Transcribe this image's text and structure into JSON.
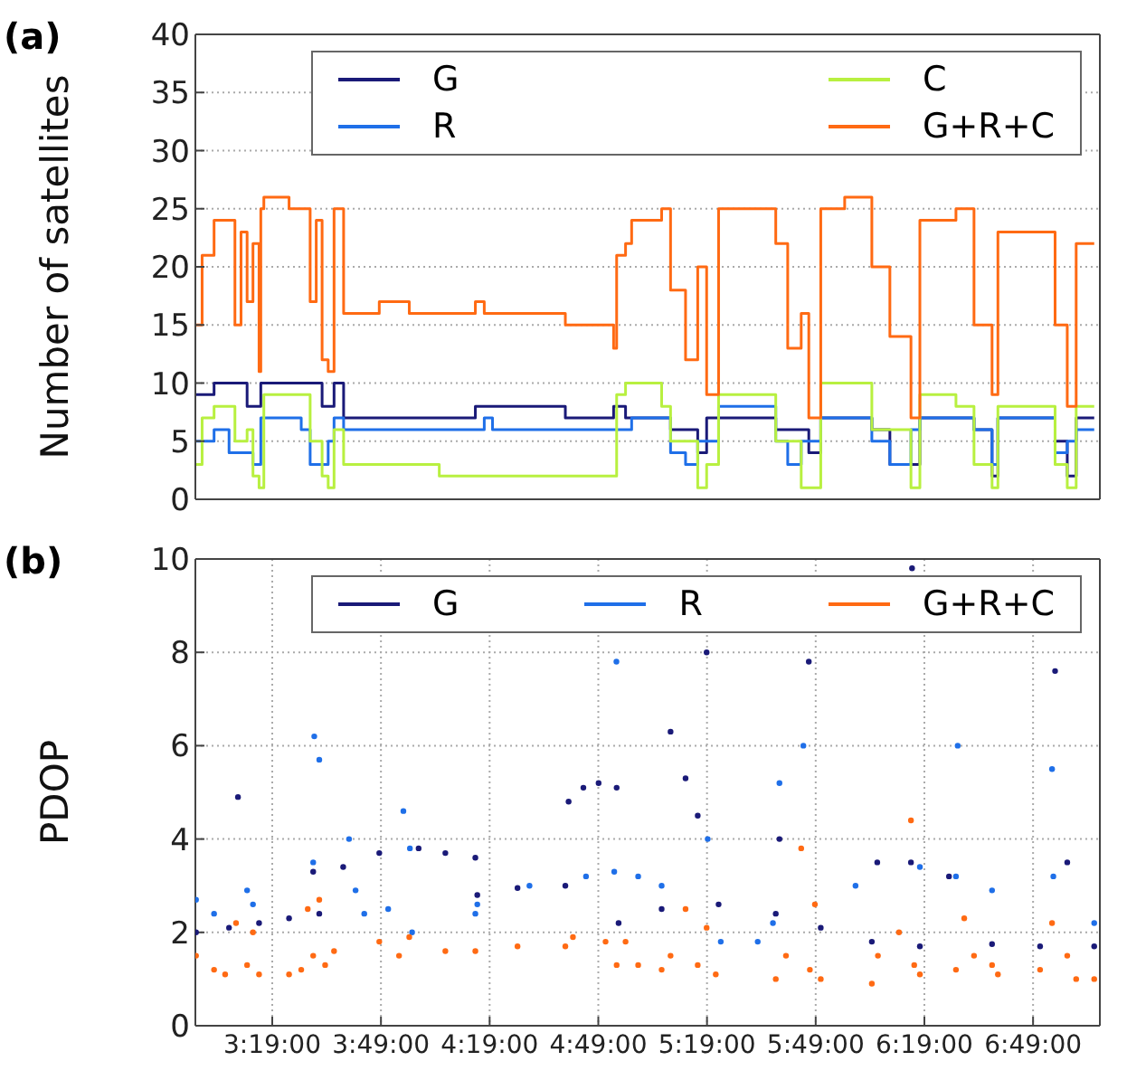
{
  "chart_data": [
    {
      "type": "step",
      "title": "(a)",
      "ylabel": "Number of satellites",
      "xlim": [
        2.963,
        7.124
      ],
      "xticks": [
        {
          "value": 3.3167,
          "label": null
        },
        {
          "value": 3.8167,
          "label": null
        },
        {
          "value": 4.3167,
          "label": null
        },
        {
          "value": 4.8167,
          "label": null
        },
        {
          "value": 5.3167,
          "label": null
        },
        {
          "value": 5.8167,
          "label": null
        },
        {
          "value": 6.3167,
          "label": null
        },
        {
          "value": 6.8167,
          "label": null
        }
      ],
      "ylim": [
        0,
        40
      ],
      "yticks": [
        0,
        5,
        10,
        15,
        20,
        25,
        30,
        35,
        40
      ],
      "tick_labels": "y",
      "grid": true,
      "legend": "top",
      "marker": "none",
      "series": [
        {
          "name": "G",
          "color": "#1a1a78",
          "x": [
            2.966,
            3.049,
            3.201,
            3.264,
            3.546,
            3.601,
            3.645,
            4.251,
            4.665,
            4.887,
            4.942,
            5.149,
            5.274,
            5.315,
            5.633,
            5.785,
            5.84,
            6.075,
            6.158,
            6.296,
            6.545,
            6.628,
            6.655,
            6.918,
            6.974,
            7.015,
            7.098
          ],
          "values": [
            9,
            10,
            8,
            10,
            8,
            10,
            7,
            8,
            7,
            8,
            7,
            6,
            4,
            7,
            6,
            4,
            7,
            6,
            3,
            7,
            6,
            2,
            7,
            5,
            2,
            7,
            7
          ]
        },
        {
          "name": "R",
          "color": "#1f6fe8",
          "x": [
            2.966,
            3.049,
            3.118,
            3.228,
            3.264,
            3.45,
            3.491,
            3.574,
            3.601,
            3.645,
            4.292,
            4.33,
            4.887,
            4.97,
            5.149,
            5.218,
            5.274,
            5.37,
            5.633,
            5.688,
            5.75,
            5.84,
            6.075,
            6.158,
            6.255,
            6.296,
            6.545,
            6.628,
            6.655,
            6.918,
            6.974,
            7.015,
            7.098
          ],
          "values": [
            5,
            6,
            4,
            3,
            7,
            6,
            3,
            5,
            7,
            6,
            7,
            6,
            6,
            7,
            4,
            3,
            5,
            8,
            5,
            3,
            5,
            7,
            5,
            3,
            6,
            7,
            6,
            3,
            7,
            4,
            5,
            6,
            6
          ]
        },
        {
          "name": "C",
          "color": "#b8f040",
          "x": [
            2.966,
            2.994,
            3.049,
            3.145,
            3.201,
            3.228,
            3.256,
            3.278,
            3.45,
            3.491,
            3.546,
            3.574,
            3.601,
            3.645,
            4.002,
            4.085,
            4.887,
            4.901,
            4.942,
            5.108,
            5.149,
            5.274,
            5.315,
            5.37,
            5.633,
            5.75,
            5.785,
            5.84,
            6.075,
            6.255,
            6.296,
            6.462,
            6.545,
            6.628,
            6.655,
            6.849,
            6.918,
            6.974,
            7.015,
            7.098
          ],
          "values": [
            3,
            7,
            8,
            5,
            6,
            2,
            1,
            9,
            9,
            5,
            2,
            1,
            6,
            3,
            3,
            2,
            2,
            9,
            10,
            8,
            5,
            1,
            3,
            9,
            5,
            1,
            1,
            10,
            6,
            1,
            9,
            8,
            3,
            1,
            8,
            8,
            3,
            1,
            8,
            8
          ]
        },
        {
          "name": "G+R+C",
          "color": "#ff6a13",
          "x": [
            2.966,
            2.994,
            3.049,
            3.118,
            3.145,
            3.173,
            3.201,
            3.228,
            3.256,
            3.264,
            3.278,
            3.394,
            3.45,
            3.491,
            3.519,
            3.546,
            3.574,
            3.601,
            3.637,
            3.645,
            3.809,
            3.947,
            4.002,
            4.085,
            4.251,
            4.292,
            4.665,
            4.776,
            4.887,
            4.901,
            4.942,
            4.97,
            5.108,
            5.149,
            5.218,
            5.274,
            5.315,
            5.37,
            5.633,
            5.688,
            5.75,
            5.785,
            5.84,
            5.95,
            6.075,
            6.158,
            6.255,
            6.296,
            6.462,
            6.545,
            6.628,
            6.655,
            6.849,
            6.918,
            6.974,
            7.015,
            7.098
          ],
          "values": [
            15,
            21,
            24,
            24,
            15,
            23,
            17,
            22,
            11,
            25,
            26,
            25,
            25,
            17,
            24,
            12,
            11,
            25,
            25,
            16,
            17,
            16,
            16,
            16,
            17,
            16,
            15,
            15,
            13,
            21,
            22,
            24,
            25,
            18,
            12,
            20,
            9,
            25,
            22,
            13,
            16,
            7,
            25,
            26,
            20,
            14,
            7,
            24,
            25,
            15,
            9,
            23,
            23,
            15,
            8,
            22,
            22
          ]
        }
      ]
    },
    {
      "type": "scatter",
      "title": "(b)",
      "ylabel": "PDOP",
      "xlim": [
        2.963,
        7.124
      ],
      "xticks": [
        {
          "value": 3.3167,
          "label": "3:19:00"
        },
        {
          "value": 3.8167,
          "label": "3:49:00"
        },
        {
          "value": 4.3167,
          "label": "4:19:00"
        },
        {
          "value": 4.8167,
          "label": "4:49:00"
        },
        {
          "value": 5.3167,
          "label": "5:19:00"
        },
        {
          "value": 5.8167,
          "label": "5:49:00"
        },
        {
          "value": 6.3167,
          "label": "6:19:00"
        },
        {
          "value": 6.8167,
          "label": "6:49:00"
        }
      ],
      "ylim": [
        0,
        10
      ],
      "yticks": [
        0,
        2,
        4,
        6,
        8,
        10
      ],
      "grid": true,
      "legend": "top",
      "marker": "circle",
      "series": [
        {
          "name": "G",
          "color": "#1a1a78",
          "x": [
            2.966,
            3.118,
            3.159,
            3.256,
            3.394,
            3.505,
            3.533,
            3.643,
            3.809,
            3.99,
            4.113,
            4.251,
            4.26,
            4.445,
            4.665,
            4.68,
            4.748,
            4.818,
            4.901,
            4.91,
            5.108,
            5.149,
            5.218,
            5.274,
            5.315,
            5.37,
            5.633,
            5.65,
            5.785,
            5.84,
            6.075,
            6.1,
            6.255,
            6.26,
            6.296,
            6.43,
            6.628,
            6.849,
            6.918,
            6.974,
            7.098
          ],
          "values": [
            2.0,
            2.1,
            4.9,
            2.2,
            2.3,
            3.3,
            2.4,
            3.4,
            3.7,
            3.8,
            3.7,
            3.6,
            2.8,
            2.95,
            3.0,
            4.8,
            5.1,
            5.2,
            5.1,
            2.2,
            2.5,
            6.3,
            5.3,
            4.5,
            8.0,
            2.6,
            2.4,
            4.0,
            7.8,
            2.1,
            1.8,
            3.5,
            3.5,
            9.8,
            1.7,
            3.2,
            1.75,
            1.7,
            7.6,
            3.5,
            1.7
          ]
        },
        {
          "name": "R",
          "color": "#1f6fe8",
          "x": [
            2.966,
            3.049,
            3.201,
            3.228,
            3.505,
            3.51,
            3.533,
            3.67,
            3.7,
            3.74,
            3.85,
            3.92,
            3.95,
            3.96,
            4.251,
            4.26,
            4.5,
            4.76,
            4.89,
            4.9,
            5.0,
            5.108,
            5.32,
            5.38,
            5.55,
            5.62,
            5.65,
            5.76,
            6.0,
            6.296,
            6.462,
            6.47,
            6.628,
            6.904,
            6.91,
            7.098
          ],
          "values": [
            2.7,
            2.4,
            2.9,
            2.6,
            3.5,
            6.2,
            5.7,
            4.0,
            2.9,
            2.4,
            2.5,
            4.6,
            3.8,
            2.0,
            2.4,
            2.6,
            3.0,
            3.2,
            3.3,
            7.8,
            3.2,
            3.0,
            4.0,
            1.8,
            1.8,
            2.2,
            5.2,
            6.0,
            3.0,
            3.4,
            3.2,
            6.0,
            2.9,
            5.5,
            3.2,
            2.2
          ]
        },
        {
          "name": "G+R+C",
          "color": "#ff6a13",
          "x": [
            2.966,
            3.049,
            3.1,
            3.15,
            3.201,
            3.228,
            3.256,
            3.394,
            3.45,
            3.48,
            3.505,
            3.533,
            3.56,
            3.601,
            3.809,
            3.9,
            3.947,
            4.113,
            4.251,
            4.445,
            4.665,
            4.7,
            4.85,
            4.901,
            4.942,
            5.0,
            5.108,
            5.149,
            5.218,
            5.274,
            5.315,
            5.357,
            5.633,
            5.68,
            5.75,
            5.79,
            5.813,
            5.84,
            6.075,
            6.103,
            6.2,
            6.255,
            6.27,
            6.296,
            6.462,
            6.5,
            6.545,
            6.628,
            6.655,
            6.849,
            6.904,
            6.974,
            7.015,
            7.098
          ],
          "values": [
            1.5,
            1.2,
            1.1,
            2.2,
            1.3,
            2.0,
            1.1,
            1.1,
            1.2,
            2.5,
            1.5,
            2.7,
            1.3,
            1.6,
            1.8,
            1.5,
            1.9,
            1.6,
            1.6,
            1.7,
            1.7,
            1.9,
            1.8,
            1.3,
            1.8,
            1.3,
            1.2,
            1.5,
            2.5,
            1.3,
            2.1,
            1.1,
            1.0,
            1.5,
            3.8,
            1.2,
            2.6,
            1.0,
            0.9,
            1.5,
            2.0,
            4.4,
            1.3,
            1.1,
            1.2,
            2.3,
            1.5,
            1.3,
            1.1,
            1.2,
            2.2,
            1.5,
            1.0,
            1.0
          ]
        }
      ]
    }
  ]
}
